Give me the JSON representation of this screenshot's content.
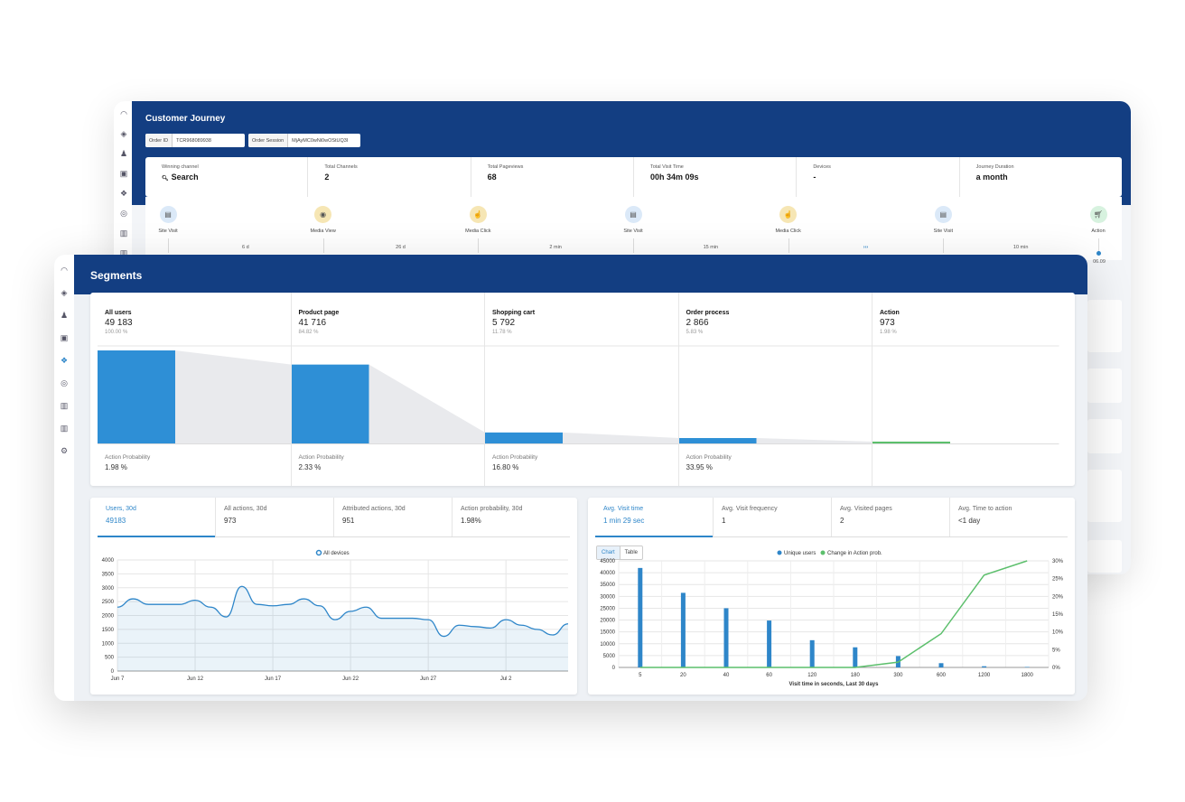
{
  "journey": {
    "title": "Customer Journey",
    "order_id_label": "Order ID",
    "order_id_value": "TCR968089938",
    "order_session_label": "Order Session",
    "order_session_value": "MjAyMC0wNi0wOStUQ3I",
    "stats": [
      {
        "label": "Winning channel",
        "value": "Search",
        "icon": "search-icon"
      },
      {
        "label": "Total Channels",
        "value": "2"
      },
      {
        "label": "Total Pageviews",
        "value": "68"
      },
      {
        "label": "Total Visit Time",
        "value": "00h 34m 09s"
      },
      {
        "label": "Devices",
        "value": "-"
      },
      {
        "label": "Journey Duration",
        "value": "a month"
      }
    ],
    "steps": [
      {
        "label": "Site Visit",
        "icon": "browser-icon",
        "color": "#dbe9f8"
      },
      {
        "label": "Media View",
        "icon": "eye-icon",
        "color": "#f6e6b4"
      },
      {
        "label": "Media Click",
        "icon": "pointer-icon",
        "color": "#f6e6b4"
      },
      {
        "label": "Site Visit",
        "icon": "browser-icon",
        "color": "#dbe9f8"
      },
      {
        "label": "Media Click",
        "icon": "pointer-icon",
        "color": "#f6e6b4"
      },
      {
        "label": "Site Visit",
        "icon": "browser-icon",
        "color": "#dbe9f8"
      },
      {
        "label": "Action",
        "icon": "cart-icon",
        "color": "#d7f2df"
      }
    ],
    "durations": [
      "6 d",
      "26 d",
      "2 min",
      "15 min",
      "›››",
      "10 min"
    ],
    "end_date": "06.09"
  },
  "segments": {
    "title": "Segments",
    "funnel": [
      {
        "name": "All users",
        "count": "49 183",
        "pct": "100.00 %",
        "prob_label": "Action Probability",
        "prob": "1.98 %",
        "share": 1.0
      },
      {
        "name": "Product page",
        "count": "41 716",
        "pct": "84.82 %",
        "prob_label": "Action Probability",
        "prob": "2.33 %",
        "share": 0.848
      },
      {
        "name": "Shopping cart",
        "count": "5 792",
        "pct": "11.78 %",
        "prob_label": "Action Probability",
        "prob": "16.80 %",
        "share": 0.118
      },
      {
        "name": "Order process",
        "count": "2 866",
        "pct": "5.83 %",
        "prob_label": "Action Probability",
        "prob": "33.95 %",
        "share": 0.058
      },
      {
        "name": "Action",
        "count": "973",
        "pct": "1.98 %",
        "prob_label": "",
        "prob": "",
        "share": 0.0198
      }
    ],
    "left_kpis": [
      {
        "label": "Users, 30d",
        "value": "49183"
      },
      {
        "label": "All actions, 30d",
        "value": "973"
      },
      {
        "label": "Attributed actions, 30d",
        "value": "951"
      },
      {
        "label": "Action probability, 30d",
        "value": "1.98%"
      }
    ],
    "right_kpis": [
      {
        "label": "Avg. Visit time",
        "value": "1 min 29 sec"
      },
      {
        "label": "Avg. Visit frequency",
        "value": "1"
      },
      {
        "label": "Avg. Visited pages",
        "value": "2"
      },
      {
        "label": "Avg. Time to action",
        "value": "<1 day"
      }
    ],
    "toggle": {
      "chart": "Chart",
      "table": "Table"
    }
  },
  "chart_data": [
    {
      "type": "area",
      "legend": [
        "All devices"
      ],
      "legend_position": "top-center",
      "ylim": [
        0,
        4000
      ],
      "yticks": [
        0,
        500,
        1000,
        1500,
        2000,
        2500,
        3000,
        3500,
        4000
      ],
      "xticks": [
        "Jun 7",
        "Jun 12",
        "Jun 17",
        "Jun 22",
        "Jun 27",
        "Jul 2"
      ],
      "x": [
        "Jun 7",
        "Jun 8",
        "Jun 9",
        "Jun 10",
        "Jun 11",
        "Jun 12",
        "Jun 13",
        "Jun 14",
        "Jun 15",
        "Jun 16",
        "Jun 17",
        "Jun 18",
        "Jun 19",
        "Jun 20",
        "Jun 21",
        "Jun 22",
        "Jun 23",
        "Jun 24",
        "Jun 25",
        "Jun 26",
        "Jun 27",
        "Jun 28",
        "Jun 29",
        "Jun 30",
        "Jul 1",
        "Jul 2",
        "Jul 3",
        "Jul 4",
        "Jul 5",
        "Jul 6"
      ],
      "series": [
        {
          "name": "All devices",
          "color": "#2e86c9",
          "values": [
            2300,
            2600,
            2400,
            2400,
            2400,
            2550,
            2300,
            1950,
            3050,
            2400,
            2350,
            2400,
            2600,
            2350,
            1850,
            2150,
            2300,
            1900,
            1900,
            1900,
            1850,
            1250,
            1650,
            1600,
            1550,
            1850,
            1650,
            1500,
            1300,
            1700
          ]
        }
      ],
      "grid": true
    },
    {
      "type": "bar",
      "legend": [
        "Unique users",
        "Change in Action prob."
      ],
      "legend_position": "top-center",
      "xlabel": "Visit time in seconds, Last 30 days",
      "categories": [
        "5",
        "20",
        "40",
        "60",
        "120",
        "180",
        "300",
        "600",
        "1200",
        "1800"
      ],
      "ylim": [
        0,
        45000
      ],
      "yticks": [
        0,
        5000,
        10000,
        15000,
        20000,
        25000,
        30000,
        35000,
        40000,
        45000
      ],
      "y2lim": [
        0,
        30
      ],
      "y2ticks": [
        "0%",
        "5%",
        "10%",
        "15%",
        "20%",
        "25%",
        "30%"
      ],
      "series": [
        {
          "name": "Unique users",
          "type": "bar",
          "color": "#2e86c9",
          "values": [
            42000,
            31500,
            25000,
            19800,
            11500,
            8500,
            4800,
            1800,
            500,
            200
          ]
        },
        {
          "name": "Change in Action prob.",
          "type": "line",
          "axis": "right",
          "color": "#5cbf6c",
          "values": [
            0,
            0,
            0,
            0,
            0,
            0,
            1.5,
            9.5,
            26,
            30
          ]
        }
      ],
      "grid": true
    }
  ]
}
